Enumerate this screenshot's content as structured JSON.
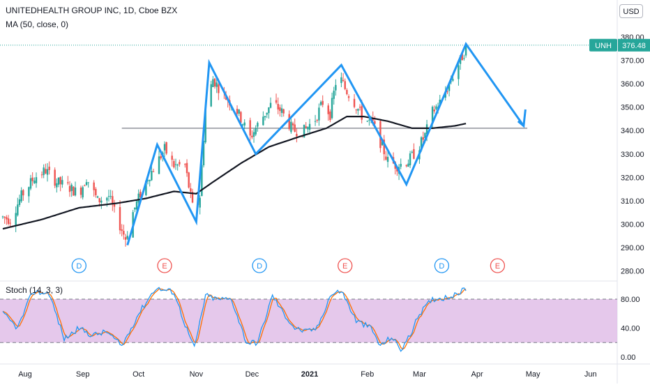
{
  "header": {
    "title": "UNITEDHEALTH GROUP INC, 1D, Cboe BZX",
    "indicator": "MA (50, close, 0)",
    "currency": "USD"
  },
  "price_tag": {
    "symbol": "UNH",
    "value": "376.48",
    "color": "#26a69a"
  },
  "stoch": {
    "label": "Stoch (14, 3, 3)"
  },
  "events": [
    {
      "label": "D",
      "type": "dividend",
      "color": "#2196f3"
    },
    {
      "label": "E",
      "type": "earnings",
      "color": "#ef5350"
    },
    {
      "label": "D",
      "type": "dividend",
      "color": "#2196f3"
    },
    {
      "label": "E",
      "type": "earnings",
      "color": "#ef5350"
    },
    {
      "label": "D",
      "type": "dividend",
      "color": "#2196f3"
    },
    {
      "label": "E",
      "type": "earnings",
      "color": "#ef5350"
    }
  ],
  "chart_data": {
    "type": "candlestick",
    "x_axis_labels": [
      "Aug",
      "Sep",
      "Oct",
      "Nov",
      "Dec",
      "2021",
      "Feb",
      "Mar",
      "Apr",
      "May",
      "Jun"
    ],
    "y_axis_labels": [
      "280.00",
      "290.00",
      "300.00",
      "310.00",
      "320.00",
      "330.00",
      "340.00",
      "350.00",
      "360.00",
      "370.00",
      "380.00"
    ],
    "ylim": [
      275,
      385
    ],
    "stoch_axis_labels": [
      "0.00",
      "40.00",
      "80.00"
    ],
    "stoch_ylim": [
      -7,
      102
    ],
    "stoch_band": [
      20,
      80
    ],
    "colors": {
      "up": "#26a69a",
      "down": "#ef5350",
      "ma": "#131722",
      "drawing": "#2196f3",
      "stoch_k": "#2196f3",
      "stoch_d": "#ff6d00",
      "band_fill": "#e1bee7",
      "last_price_line": "#26a69a"
    },
    "price_anchors": [
      [
        "2020-07-20",
        303
      ],
      [
        "2020-07-24",
        302
      ],
      [
        "2020-07-30",
        312
      ],
      [
        "2020-08-06",
        320
      ],
      [
        "2020-08-12",
        323
      ],
      [
        "2020-08-18",
        318
      ],
      [
        "2020-08-24",
        316
      ],
      [
        "2020-08-30",
        313
      ],
      [
        "2020-09-03",
        320
      ],
      [
        "2020-09-09",
        310
      ],
      [
        "2020-09-15",
        312
      ],
      [
        "2020-09-18",
        305
      ],
      [
        "2020-09-24",
        294
      ],
      [
        "2020-09-28",
        305
      ],
      [
        "2020-10-02",
        313
      ],
      [
        "2020-10-06",
        320
      ],
      [
        "2020-10-10",
        325
      ],
      [
        "2020-10-15",
        332
      ],
      [
        "2020-10-20",
        325
      ],
      [
        "2020-10-26",
        325
      ],
      [
        "2020-10-31",
        303
      ],
      [
        "2020-11-03",
        312
      ],
      [
        "2020-11-06",
        350
      ],
      [
        "2020-11-10",
        362
      ],
      [
        "2020-11-16",
        355
      ],
      [
        "2020-11-22",
        350
      ],
      [
        "2020-11-30",
        337
      ],
      [
        "2020-12-06",
        345
      ],
      [
        "2020-12-12",
        352
      ],
      [
        "2020-12-17",
        348
      ],
      [
        "2020-12-23",
        340
      ],
      [
        "2020-12-29",
        340
      ],
      [
        "2021-01-04",
        345
      ],
      [
        "2021-01-08",
        352
      ],
      [
        "2021-01-12",
        347
      ],
      [
        "2021-01-16",
        365
      ],
      [
        "2021-01-20",
        358
      ],
      [
        "2021-01-25",
        352
      ],
      [
        "2021-01-30",
        345
      ],
      [
        "2021-02-04",
        343
      ],
      [
        "2021-02-08",
        335
      ],
      [
        "2021-02-12",
        327
      ],
      [
        "2021-02-17",
        325
      ],
      [
        "2021-02-23",
        327
      ],
      [
        "2021-02-28",
        332
      ],
      [
        "2021-03-04",
        338
      ],
      [
        "2021-03-08",
        348
      ],
      [
        "2021-03-12",
        352
      ],
      [
        "2021-03-16",
        358
      ],
      [
        "2021-03-20",
        365
      ],
      [
        "2021-03-26",
        375
      ]
    ],
    "ma_anchors": [
      [
        "2020-07-20",
        298
      ],
      [
        "2020-08-10",
        302
      ],
      [
        "2020-08-30",
        307
      ],
      [
        "2020-09-20",
        309
      ],
      [
        "2020-10-05",
        311
      ],
      [
        "2020-10-20",
        314
      ],
      [
        "2020-11-01",
        313
      ],
      [
        "2020-11-10",
        318
      ],
      [
        "2020-11-25",
        326
      ],
      [
        "2020-12-10",
        333
      ],
      [
        "2020-12-25",
        337
      ],
      [
        "2021-01-10",
        341
      ],
      [
        "2021-01-21",
        346
      ],
      [
        "2021-01-30",
        346
      ],
      [
        "2021-02-12",
        344
      ],
      [
        "2021-02-25",
        341
      ],
      [
        "2021-03-08",
        341
      ],
      [
        "2021-03-20",
        342
      ],
      [
        "2021-03-26",
        343
      ]
    ],
    "last_price": 376.48,
    "support_line": {
      "start": "2020-09-22",
      "end": "2021-04-28",
      "value": 341
    },
    "pattern_drawing": [
      [
        "2020-09-25",
        291
      ],
      [
        "2020-10-11",
        334
      ],
      [
        "2020-11-01",
        301
      ],
      [
        "2020-11-08",
        369
      ],
      [
        "2020-12-03",
        330
      ],
      [
        "2021-01-18",
        368
      ],
      [
        "2021-02-22",
        317
      ],
      [
        "2021-03-26",
        377
      ],
      [
        "2021-04-26",
        342
      ]
    ],
    "pattern_arrow_head": [
      [
        "2021-04-23",
        344
      ],
      [
        "2021-04-26",
        342
      ],
      [
        "2021-04-27",
        349
      ]
    ],
    "event_dates": [
      "2020-08-30",
      "2020-10-15",
      "2020-12-05",
      "2021-01-20",
      "2021-03-13",
      "2021-04-12"
    ],
    "stoch_anchors": [
      [
        "2020-07-20",
        60
      ],
      [
        "2020-07-28",
        40
      ],
      [
        "2020-08-05",
        90
      ],
      [
        "2020-08-14",
        88
      ],
      [
        "2020-08-22",
        25
      ],
      [
        "2020-08-30",
        40
      ],
      [
        "2020-09-06",
        30
      ],
      [
        "2020-09-14",
        35
      ],
      [
        "2020-09-22",
        15
      ],
      [
        "2020-10-01",
        60
      ],
      [
        "2020-10-10",
        95
      ],
      [
        "2020-10-20",
        90
      ],
      [
        "2020-10-26",
        45
      ],
      [
        "2020-10-31",
        12
      ],
      [
        "2020-11-06",
        85
      ],
      [
        "2020-11-12",
        80
      ],
      [
        "2020-11-20",
        80
      ],
      [
        "2020-11-28",
        20
      ],
      [
        "2020-12-04",
        20
      ],
      [
        "2020-12-12",
        85
      ],
      [
        "2020-12-18",
        60
      ],
      [
        "2020-12-24",
        40
      ],
      [
        "2020-12-30",
        35
      ],
      [
        "2021-01-05",
        40
      ],
      [
        "2021-01-12",
        85
      ],
      [
        "2021-01-18",
        92
      ],
      [
        "2021-01-26",
        50
      ],
      [
        "2021-02-03",
        40
      ],
      [
        "2021-02-08",
        15
      ],
      [
        "2021-02-14",
        28
      ],
      [
        "2021-02-19",
        10
      ],
      [
        "2021-02-24",
        30
      ],
      [
        "2021-03-01",
        60
      ],
      [
        "2021-03-08",
        80
      ],
      [
        "2021-03-14",
        82
      ],
      [
        "2021-03-20",
        85
      ],
      [
        "2021-03-26",
        95
      ]
    ]
  }
}
